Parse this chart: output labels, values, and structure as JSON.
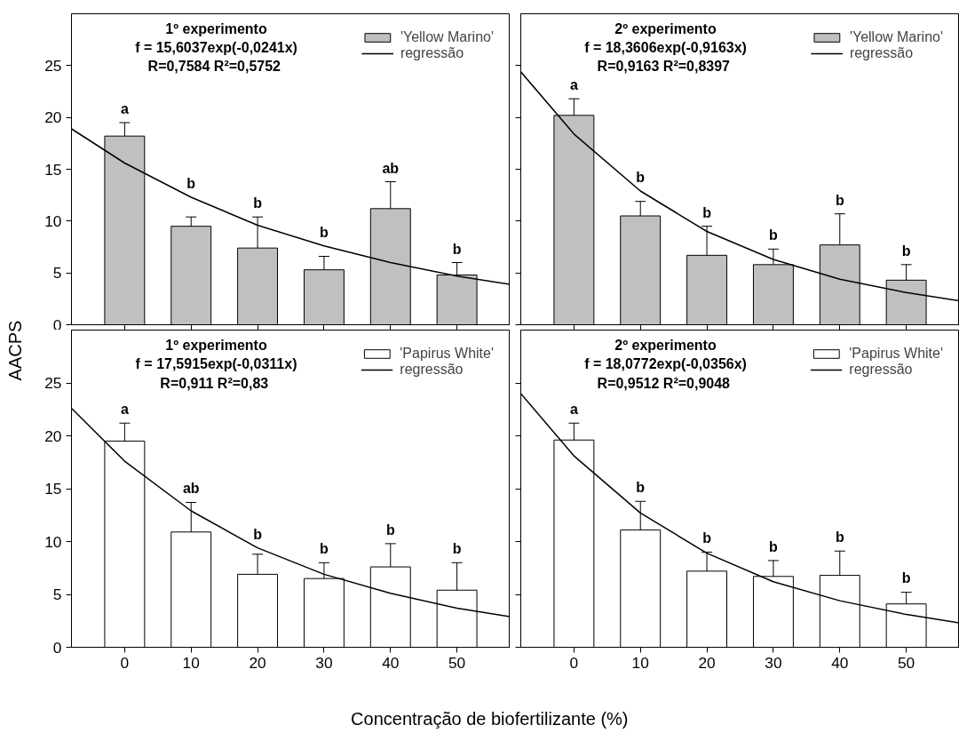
{
  "chart_data": [
    {
      "type": "bar",
      "ylabel": "AACPS",
      "x": [
        0,
        10,
        20,
        30,
        40,
        50
      ],
      "xlim": [
        -8,
        58
      ],
      "ylim": [
        0,
        30
      ],
      "xticks": [
        0,
        10,
        20,
        30,
        40,
        50
      ],
      "yticks": [
        0,
        5,
        10,
        15,
        20,
        25
      ],
      "tick_labels": "y",
      "grid": false,
      "legend": "top right",
      "series": [
        {
          "name": "'Yellow Marino'",
          "color": "#c0c0c0",
          "values": [
            18.2,
            9.5,
            7.4,
            5.3,
            11.2,
            4.8
          ],
          "errors": [
            [
              18.2,
              19.5
            ],
            [
              9.5,
              10.4
            ],
            [
              7.4,
              10.4
            ],
            [
              5.3,
              6.6
            ],
            [
              11.2,
              13.8
            ],
            [
              4.8,
              6.0
            ]
          ]
        },
        {
          "name": "regressão",
          "type": "line",
          "color": "#000000",
          "x": [
            -8,
            0,
            10,
            20,
            30,
            40,
            50,
            58
          ],
          "values": [
            18.9,
            15.6,
            12.3,
            9.6,
            7.6,
            6.0,
            4.7,
            3.9
          ]
        }
      ],
      "annotations": [
        "1º experimento",
        "f = 15,6037exp(-0,0241x)",
        "R=0,7584  R²=0,5752",
        "a",
        "b",
        "b",
        "b",
        "ab",
        "b"
      ]
    },
    {
      "type": "bar",
      "x": [
        0,
        10,
        20,
        30,
        40,
        50
      ],
      "xlim": [
        -8,
        58
      ],
      "ylim": [
        0,
        30
      ],
      "xticks": [
        0,
        10,
        20,
        30,
        40,
        50
      ],
      "yticks": [
        0,
        5,
        10,
        15,
        20,
        25
      ],
      "tick_labels": false,
      "grid": false,
      "legend": "top right",
      "series": [
        {
          "name": "'Yellow Marino'",
          "color": "#c0c0c0",
          "values": [
            20.2,
            10.5,
            6.7,
            5.8,
            7.7,
            4.3
          ],
          "errors": [
            [
              20.2,
              21.8
            ],
            [
              10.5,
              11.9
            ],
            [
              6.7,
              9.5
            ],
            [
              5.8,
              7.3
            ],
            [
              7.7,
              10.7
            ],
            [
              4.3,
              5.8
            ]
          ]
        },
        {
          "name": "regressão",
          "type": "line",
          "color": "#000000",
          "x": [
            -8,
            0,
            10,
            20,
            30,
            40,
            50,
            58
          ],
          "values": [
            24.4,
            18.4,
            12.9,
            9.0,
            6.3,
            4.4,
            3.1,
            2.3
          ]
        }
      ],
      "annotations": [
        "2º experimento",
        "f = 18,3606exp(-0,9163x)",
        "R=0,9163  R²=0,8397",
        "a",
        "b",
        "b",
        "b",
        "b",
        "b"
      ]
    },
    {
      "type": "bar",
      "xlabel": "Concentração de biofertilizante (%)",
      "x": [
        0,
        10,
        20,
        30,
        40,
        50
      ],
      "xlim": [
        -8,
        58
      ],
      "ylim": [
        0,
        30
      ],
      "xticks": [
        0,
        10,
        20,
        30,
        40,
        50
      ],
      "yticks": [
        0,
        5,
        10,
        15,
        20,
        25
      ],
      "grid": false,
      "legend": "top right",
      "series": [
        {
          "name": "'Papirus White'",
          "color": "#ffffff",
          "values": [
            19.5,
            10.9,
            6.9,
            6.5,
            7.6,
            5.4
          ],
          "errors": [
            [
              19.5,
              21.2
            ],
            [
              10.9,
              13.7
            ],
            [
              6.9,
              8.8
            ],
            [
              6.5,
              8.0
            ],
            [
              7.6,
              9.8
            ],
            [
              5.4,
              8.0
            ]
          ]
        },
        {
          "name": "regressão",
          "type": "line",
          "color": "#000000",
          "x": [
            -8,
            0,
            10,
            20,
            30,
            40,
            50,
            58
          ],
          "values": [
            22.6,
            17.6,
            12.9,
            9.4,
            6.9,
            5.1,
            3.7,
            2.9
          ]
        }
      ],
      "annotations": [
        "1º experimento",
        "f = 17,5915exp(-0,0311x)",
        "R=0,911  R²=0,83",
        "a",
        "ab",
        "b",
        "b",
        "b",
        "b"
      ]
    },
    {
      "type": "bar",
      "x": [
        0,
        10,
        20,
        30,
        40,
        50
      ],
      "xlim": [
        -8,
        58
      ],
      "ylim": [
        0,
        30
      ],
      "xticks": [
        0,
        10,
        20,
        30,
        40,
        50
      ],
      "yticks": [
        0,
        5,
        10,
        15,
        20,
        25
      ],
      "tick_labels": "x",
      "grid": false,
      "legend": "top right",
      "series": [
        {
          "name": "'Papirus White'",
          "color": "#ffffff",
          "values": [
            19.6,
            11.1,
            7.2,
            6.7,
            6.8,
            4.1
          ],
          "errors": [
            [
              19.6,
              21.2
            ],
            [
              11.1,
              13.8
            ],
            [
              7.2,
              9.0
            ],
            [
              6.7,
              8.2
            ],
            [
              6.8,
              9.1
            ],
            [
              4.1,
              5.2
            ]
          ]
        },
        {
          "name": "regressão",
          "type": "line",
          "color": "#000000",
          "x": [
            -8,
            0,
            10,
            20,
            30,
            40,
            50,
            58
          ],
          "values": [
            24.0,
            18.1,
            12.7,
            8.9,
            6.2,
            4.4,
            3.1,
            2.3
          ]
        }
      ],
      "annotations": [
        "2º experimento",
        "f = 18,0772exp(-0,0356x)",
        "R=0,9512  R²=0,9048",
        "a",
        "b",
        "b",
        "b",
        "b",
        "b"
      ]
    }
  ]
}
